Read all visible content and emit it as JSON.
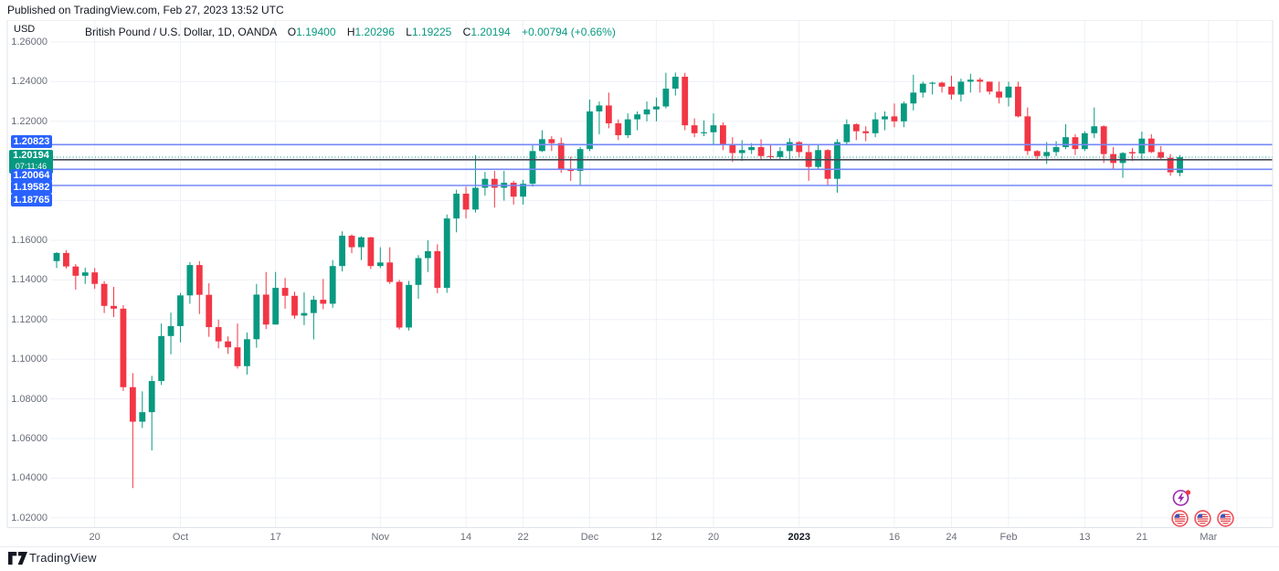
{
  "published_bar": {
    "text": "Published on TradingView.com, Feb 27, 2023 13:52 UTC"
  },
  "header": {
    "symbol_title": "British Pound / U.S. Dollar, 1D, OANDA",
    "ohlc": {
      "open_label": "O",
      "open": "1.19400",
      "high_label": "H",
      "high": "1.20296",
      "low_label": "L",
      "low": "1.19225",
      "close_label": "C",
      "close": "1.20194",
      "change": "+0.00794 (+0.66%)"
    }
  },
  "price_axis": {
    "currency_label": "USD",
    "ticks": [
      {
        "label": "1.26000",
        "price": 1.26
      },
      {
        "label": "1.24000",
        "price": 1.24
      },
      {
        "label": "1.22000",
        "price": 1.22
      },
      {
        "label": "1.16000",
        "price": 1.16
      },
      {
        "label": "1.14000",
        "price": 1.14
      },
      {
        "label": "1.12000",
        "price": 1.12
      },
      {
        "label": "1.10000",
        "price": 1.1
      },
      {
        "label": "1.08000",
        "price": 1.08
      },
      {
        "label": "1.06000",
        "price": 1.06
      },
      {
        "label": "1.04000",
        "price": 1.04
      },
      {
        "label": "1.02000",
        "price": 1.02
      }
    ],
    "badges": [
      {
        "label": "1.20823",
        "type": "blue"
      },
      {
        "label": "1.20194",
        "countdown": "07:11:46",
        "type": "green"
      },
      {
        "label": "1.20064",
        "type": "blue"
      },
      {
        "label": "1.19582",
        "type": "blue"
      },
      {
        "label": "1.18765",
        "type": "blue"
      }
    ]
  },
  "time_axis": {
    "ticks": [
      {
        "label": "20",
        "index": 4
      },
      {
        "label": "Oct",
        "index": 13
      },
      {
        "label": "17",
        "index": 23
      },
      {
        "label": "Nov",
        "index": 34
      },
      {
        "label": "14",
        "index": 43
      },
      {
        "label": "22",
        "index": 49
      },
      {
        "label": "Dec",
        "index": 56
      },
      {
        "label": "12",
        "index": 63
      },
      {
        "label": "20",
        "index": 69
      },
      {
        "label": "2023",
        "index": 78,
        "year": true
      },
      {
        "label": "16",
        "index": 88
      },
      {
        "label": "24",
        "index": 94
      },
      {
        "label": "Feb",
        "index": 100
      },
      {
        "label": "13",
        "index": 108
      },
      {
        "label": "21",
        "index": 114
      },
      {
        "label": "Mar",
        "index": 121
      },
      {
        "label": "",
        "index": 124
      }
    ]
  },
  "chart_data": {
    "type": "candlestick",
    "title": "British Pound / U.S. Dollar",
    "symbol": "GBPUSD",
    "timeframe": "1D",
    "exchange": "OANDA",
    "ylim": [
      1.02,
      1.26
    ],
    "grid": true,
    "legend_position": "none",
    "price_lines": [
      {
        "price": 1.20823,
        "style": "solid",
        "role": "alert-line",
        "color": "#7388f7"
      },
      {
        "price": 1.20194,
        "style": "dotted",
        "role": "last-price",
        "color": "#089981"
      },
      {
        "price": 1.20064,
        "style": "solid",
        "role": "horizontal-line",
        "color": "#454a57"
      },
      {
        "price": 1.19582,
        "style": "solid",
        "role": "alert-line",
        "color": "#7388f7"
      },
      {
        "price": 1.18765,
        "style": "solid",
        "role": "alert-line",
        "color": "#7388f7"
      }
    ],
    "candles": [
      [
        "2022-09-14",
        1.1495,
        1.154,
        1.146,
        1.1536
      ],
      [
        "2022-09-15",
        1.1536,
        1.155,
        1.1458,
        1.1468
      ],
      [
        "2022-09-16",
        1.1468,
        1.148,
        1.1351,
        1.1421
      ],
      [
        "2022-09-19",
        1.1421,
        1.1462,
        1.138,
        1.1438
      ],
      [
        "2022-09-20",
        1.1438,
        1.146,
        1.1355,
        1.138
      ],
      [
        "2022-09-21",
        1.138,
        1.1394,
        1.1233,
        1.1269
      ],
      [
        "2022-09-22",
        1.1269,
        1.1365,
        1.1213,
        1.1255
      ],
      [
        "2022-09-23",
        1.1255,
        1.1273,
        1.084,
        1.0859
      ],
      [
        "2022-09-26",
        1.0859,
        1.093,
        1.035,
        1.0685
      ],
      [
        "2022-09-27",
        1.0685,
        1.0838,
        1.0653,
        1.0733
      ],
      [
        "2022-09-28",
        1.0733,
        1.0916,
        1.054,
        1.089
      ],
      [
        "2022-09-29",
        1.089,
        1.118,
        1.087,
        1.1117
      ],
      [
        "2022-09-30",
        1.1117,
        1.1235,
        1.1025,
        1.1167
      ],
      [
        "2022-10-03",
        1.1167,
        1.1334,
        1.1085,
        1.1322
      ],
      [
        "2022-10-04",
        1.1322,
        1.149,
        1.128,
        1.1475
      ],
      [
        "2022-10-05",
        1.1475,
        1.1495,
        1.1228,
        1.1325
      ],
      [
        "2022-10-06",
        1.1325,
        1.1383,
        1.1113,
        1.1162
      ],
      [
        "2022-10-07",
        1.1162,
        1.12,
        1.1055,
        1.109
      ],
      [
        "2022-10-10",
        1.109,
        1.1115,
        1.1027,
        1.106
      ],
      [
        "2022-10-11",
        1.106,
        1.118,
        1.0953,
        1.0965
      ],
      [
        "2022-10-12",
        1.0965,
        1.1135,
        1.0923,
        1.1101
      ],
      [
        "2022-10-13",
        1.1101,
        1.138,
        1.1058,
        1.1326
      ],
      [
        "2022-10-14",
        1.1326,
        1.144,
        1.1152,
        1.1175
      ],
      [
        "2022-10-17",
        1.1175,
        1.144,
        1.1175,
        1.136
      ],
      [
        "2022-10-18",
        1.136,
        1.141,
        1.1255,
        1.132
      ],
      [
        "2022-10-19",
        1.132,
        1.134,
        1.1205,
        1.122
      ],
      [
        "2022-10-20",
        1.122,
        1.1337,
        1.1172,
        1.1233
      ],
      [
        "2022-10-21",
        1.1233,
        1.132,
        1.11,
        1.13
      ],
      [
        "2022-10-24",
        1.13,
        1.1405,
        1.1252,
        1.128
      ],
      [
        "2022-10-25",
        1.128,
        1.15,
        1.126,
        1.147
      ],
      [
        "2022-10-26",
        1.147,
        1.1645,
        1.1443,
        1.1623
      ],
      [
        "2022-10-27",
        1.1623,
        1.163,
        1.1535,
        1.1565
      ],
      [
        "2022-10-28",
        1.1565,
        1.162,
        1.15,
        1.1615
      ],
      [
        "2022-10-31",
        1.1615,
        1.1617,
        1.1455,
        1.147
      ],
      [
        "2022-11-01",
        1.147,
        1.1565,
        1.146,
        1.1488
      ],
      [
        "2022-11-02",
        1.1488,
        1.1565,
        1.138,
        1.139
      ],
      [
        "2022-11-03",
        1.139,
        1.14,
        1.115,
        1.116
      ],
      [
        "2022-11-04",
        1.116,
        1.1395,
        1.1145,
        1.1375
      ],
      [
        "2022-11-07",
        1.1375,
        1.1525,
        1.1305,
        1.151
      ],
      [
        "2022-11-08",
        1.151,
        1.16,
        1.144,
        1.1545
      ],
      [
        "2022-11-09",
        1.1545,
        1.158,
        1.1333,
        1.136
      ],
      [
        "2022-11-10",
        1.136,
        1.173,
        1.1335,
        1.171
      ],
      [
        "2022-11-11",
        1.171,
        1.1855,
        1.164,
        1.1835
      ],
      [
        "2022-11-14",
        1.1835,
        1.187,
        1.171,
        1.1755
      ],
      [
        "2022-11-15",
        1.1755,
        1.203,
        1.174,
        1.1865
      ],
      [
        "2022-11-16",
        1.1865,
        1.1945,
        1.1825,
        1.191
      ],
      [
        "2022-11-17",
        1.191,
        1.195,
        1.1765,
        1.1865
      ],
      [
        "2022-11-18",
        1.1865,
        1.195,
        1.18,
        1.189
      ],
      [
        "2022-11-21",
        1.189,
        1.19,
        1.178,
        1.182
      ],
      [
        "2022-11-22",
        1.182,
        1.1905,
        1.178,
        1.1885
      ],
      [
        "2022-11-23",
        1.1885,
        1.2085,
        1.187,
        1.205
      ],
      [
        "2022-11-24",
        1.205,
        1.2155,
        1.2045,
        1.211
      ],
      [
        "2022-11-25",
        1.211,
        1.2125,
        1.205,
        1.209
      ],
      [
        "2022-11-28",
        1.209,
        1.2118,
        1.194,
        1.1955
      ],
      [
        "2022-11-29",
        1.1955,
        1.2022,
        1.19,
        1.195
      ],
      [
        "2022-11-30",
        1.195,
        1.207,
        1.1875,
        1.206
      ],
      [
        "2022-12-01",
        1.206,
        1.231,
        1.205,
        1.225
      ],
      [
        "2022-12-02",
        1.225,
        1.23,
        1.2135,
        1.228
      ],
      [
        "2022-12-05",
        1.228,
        1.2345,
        1.2165,
        1.219
      ],
      [
        "2022-12-06",
        1.219,
        1.221,
        1.2105,
        1.213
      ],
      [
        "2022-12-07",
        1.213,
        1.224,
        1.2115,
        1.221
      ],
      [
        "2022-12-08",
        1.221,
        1.225,
        1.2155,
        1.2235
      ],
      [
        "2022-12-09",
        1.2235,
        1.23,
        1.22,
        1.226
      ],
      [
        "2022-12-12",
        1.226,
        1.232,
        1.22,
        1.2275
      ],
      [
        "2022-12-13",
        1.2275,
        1.2445,
        1.2265,
        1.2365
      ],
      [
        "2022-12-14",
        1.2365,
        1.2446,
        1.233,
        1.2425
      ],
      [
        "2022-12-15",
        1.2425,
        1.2445,
        1.2155,
        1.218
      ],
      [
        "2022-12-16",
        1.218,
        1.2215,
        1.212,
        1.214
      ],
      [
        "2022-12-19",
        1.214,
        1.2205,
        1.2125,
        1.2145
      ],
      [
        "2022-12-20",
        1.2145,
        1.224,
        1.2085,
        1.218
      ],
      [
        "2022-12-21",
        1.218,
        1.2195,
        1.2055,
        1.2085
      ],
      [
        "2022-12-22",
        1.2085,
        1.212,
        1.1995,
        1.204
      ],
      [
        "2022-12-23",
        1.204,
        1.2105,
        1.2,
        1.2055
      ],
      [
        "2022-12-26",
        1.2055,
        1.209,
        1.2035,
        1.207
      ],
      [
        "2022-12-27",
        1.207,
        1.211,
        1.2005,
        1.2025
      ],
      [
        "2022-12-28",
        1.2025,
        1.2085,
        1.2005,
        1.202
      ],
      [
        "2022-12-29",
        1.202,
        1.207,
        1.201,
        1.205
      ],
      [
        "2022-12-30",
        1.205,
        1.2115,
        1.2005,
        1.2095
      ],
      [
        "2023-01-02",
        1.2095,
        1.21,
        1.202,
        1.2045
      ],
      [
        "2023-01-03",
        1.2045,
        1.2085,
        1.19,
        1.197
      ],
      [
        "2023-01-04",
        1.197,
        1.2085,
        1.196,
        1.2055
      ],
      [
        "2023-01-05",
        1.2055,
        1.206,
        1.1875,
        1.191
      ],
      [
        "2023-01-06",
        1.191,
        1.211,
        1.184,
        1.2095
      ],
      [
        "2023-01-09",
        1.2095,
        1.221,
        1.2085,
        1.2185
      ],
      [
        "2023-01-10",
        1.2185,
        1.219,
        1.2105,
        1.215
      ],
      [
        "2023-01-11",
        1.215,
        1.2175,
        1.21,
        1.214
      ],
      [
        "2023-01-12",
        1.214,
        1.2245,
        1.212,
        1.221
      ],
      [
        "2023-01-13",
        1.221,
        1.225,
        1.2155,
        1.2225
      ],
      [
        "2023-01-16",
        1.2225,
        1.229,
        1.217,
        1.22
      ],
      [
        "2023-01-17",
        1.22,
        1.23,
        1.217,
        1.229
      ],
      [
        "2023-01-18",
        1.229,
        1.2435,
        1.2255,
        1.2345
      ],
      [
        "2023-01-19",
        1.2345,
        1.24,
        1.232,
        1.239
      ],
      [
        "2023-01-20",
        1.239,
        1.24,
        1.2335,
        1.2395
      ],
      [
        "2023-01-23",
        1.2395,
        1.24,
        1.2345,
        1.2375
      ],
      [
        "2023-01-24",
        1.2375,
        1.243,
        1.231,
        1.2335
      ],
      [
        "2023-01-25",
        1.2335,
        1.2415,
        1.23,
        1.24
      ],
      [
        "2023-01-26",
        1.24,
        1.244,
        1.2345,
        1.241
      ],
      [
        "2023-01-27",
        1.241,
        1.242,
        1.2345,
        1.24
      ],
      [
        "2023-01-30",
        1.24,
        1.24,
        1.2335,
        1.235
      ],
      [
        "2023-01-31",
        1.235,
        1.24,
        1.229,
        1.232
      ],
      [
        "2023-02-01",
        1.232,
        1.24,
        1.2275,
        1.2375
      ],
      [
        "2023-02-02",
        1.2375,
        1.24,
        1.222,
        1.2225
      ],
      [
        "2023-02-03",
        1.2225,
        1.227,
        1.203,
        1.205
      ],
      [
        "2023-02-06",
        1.205,
        1.2055,
        1.2005,
        1.2025
      ],
      [
        "2023-02-07",
        1.2025,
        1.2095,
        1.1985,
        1.2045
      ],
      [
        "2023-02-08",
        1.2045,
        1.21,
        1.2025,
        1.207
      ],
      [
        "2023-02-09",
        1.207,
        1.2185,
        1.206,
        1.212
      ],
      [
        "2023-02-10",
        1.212,
        1.2135,
        1.203,
        1.206
      ],
      [
        "2023-02-13",
        1.206,
        1.215,
        1.205,
        1.214
      ],
      [
        "2023-02-14",
        1.214,
        1.227,
        1.2115,
        1.2175
      ],
      [
        "2023-02-15",
        1.2175,
        1.218,
        1.199,
        1.2035
      ],
      [
        "2023-02-16",
        1.2035,
        1.207,
        1.196,
        1.199
      ],
      [
        "2023-02-17",
        1.199,
        1.2045,
        1.1915,
        1.204
      ],
      [
        "2023-02-20",
        1.2045,
        1.2065,
        1.2,
        1.2038
      ],
      [
        "2023-02-21",
        1.2038,
        1.2148,
        1.201,
        1.2113
      ],
      [
        "2023-02-22",
        1.2113,
        1.2135,
        1.204,
        1.2045
      ],
      [
        "2023-02-23",
        1.2045,
        1.2075,
        1.201,
        1.2016
      ],
      [
        "2023-02-24",
        1.2016,
        1.2035,
        1.1925,
        1.1943
      ],
      [
        "2023-02-27",
        1.194,
        1.203,
        1.1923,
        1.2019
      ]
    ]
  },
  "event_markers": {
    "upcoming_event": {
      "icon": "lightning-icon",
      "ring_color": "#9c27b0",
      "badge_color": "#f23645"
    },
    "calendar_flags": [
      {
        "icon": "us-flag-icon",
        "country": "US"
      },
      {
        "icon": "us-flag-icon",
        "country": "US"
      },
      {
        "icon": "us-flag-icon",
        "country": "US"
      }
    ]
  },
  "colors": {
    "up": "#089981",
    "down": "#f23645",
    "line_blue": "#7388f7",
    "line_dark": "#454a57",
    "last_price": "#089981",
    "label_blue_bg": "#2962ff",
    "label_green_bg": "#089981",
    "grid": "#eef1f7",
    "border": "#e0e3eb",
    "axis_text": "#696e79",
    "title_text": "#131722"
  },
  "footer": {
    "brand": "TradingView"
  }
}
